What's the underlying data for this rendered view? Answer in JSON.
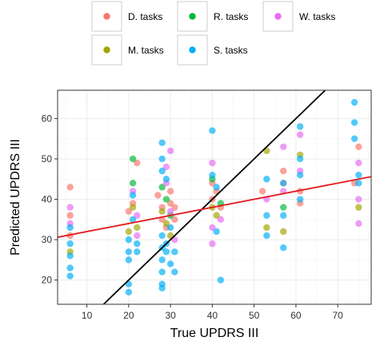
{
  "chart_data": {
    "type": "scatter",
    "xlabel": "True UPDRS III",
    "ylabel": "Predicted UPDRS III",
    "xlim": [
      3,
      78
    ],
    "ylim": [
      14,
      67
    ],
    "x_ticks": [
      10,
      20,
      30,
      40,
      50,
      60,
      70
    ],
    "y_ticks": [
      20,
      30,
      40,
      50,
      60
    ],
    "grid": true,
    "legend_position": "top",
    "series": [
      {
        "name": "D. tasks",
        "color": "#F8766D",
        "points": [
          [
            6,
            43
          ],
          [
            6,
            36
          ],
          [
            6,
            31
          ],
          [
            20,
            37
          ],
          [
            21,
            39
          ],
          [
            22,
            49
          ],
          [
            27,
            41
          ],
          [
            28,
            38
          ],
          [
            28,
            35
          ],
          [
            29,
            33
          ],
          [
            30,
            39
          ],
          [
            30,
            42
          ],
          [
            31,
            35
          ],
          [
            31,
            38
          ],
          [
            40,
            44
          ],
          [
            40,
            40
          ],
          [
            41,
            42
          ],
          [
            42,
            38
          ],
          [
            52,
            42
          ],
          [
            57,
            47
          ],
          [
            57,
            44
          ],
          [
            61,
            42
          ],
          [
            61,
            39
          ],
          [
            74,
            44
          ],
          [
            75,
            53
          ]
        ]
      },
      {
        "name": "R. tasks",
        "color": "#00BA38",
        "points": [
          [
            21,
            50
          ],
          [
            21,
            44
          ],
          [
            28,
            43
          ],
          [
            29,
            40
          ],
          [
            30,
            36
          ],
          [
            40,
            45
          ],
          [
            42,
            39
          ],
          [
            57,
            38
          ]
        ]
      },
      {
        "name": "W. tasks",
        "color": "#E76BF3",
        "points": [
          [
            6,
            38
          ],
          [
            6,
            34
          ],
          [
            21,
            42
          ],
          [
            22,
            36
          ],
          [
            22,
            31
          ],
          [
            29,
            48
          ],
          [
            29,
            44
          ],
          [
            30,
            52
          ],
          [
            30,
            37
          ],
          [
            31,
            30
          ],
          [
            40,
            49
          ],
          [
            40,
            33
          ],
          [
            40,
            29
          ],
          [
            42,
            35
          ],
          [
            53,
            40
          ],
          [
            57,
            53
          ],
          [
            57,
            42
          ],
          [
            61,
            56
          ],
          [
            61,
            47
          ],
          [
            75,
            49
          ],
          [
            75,
            40
          ],
          [
            75,
            34
          ]
        ]
      },
      {
        "name": "M. tasks",
        "color": "#A3A500",
        "points": [
          [
            6,
            27
          ],
          [
            20,
            32
          ],
          [
            21,
            38
          ],
          [
            22,
            33
          ],
          [
            28,
            37
          ],
          [
            29,
            34
          ],
          [
            30,
            31
          ],
          [
            40,
            38
          ],
          [
            41,
            36
          ],
          [
            53,
            52
          ],
          [
            53,
            33
          ],
          [
            57,
            32
          ],
          [
            61,
            51
          ],
          [
            75,
            38
          ]
        ]
      },
      {
        "name": "S. tasks",
        "color": "#00B0F6",
        "points": [
          [
            6,
            33
          ],
          [
            6,
            29
          ],
          [
            6,
            26
          ],
          [
            6,
            23
          ],
          [
            6,
            21
          ],
          [
            20,
            30
          ],
          [
            20,
            27
          ],
          [
            20,
            25
          ],
          [
            20,
            19
          ],
          [
            20,
            17
          ],
          [
            21,
            41
          ],
          [
            21,
            35
          ],
          [
            22,
            29
          ],
          [
            22,
            27
          ],
          [
            28,
            54
          ],
          [
            28,
            50
          ],
          [
            28,
            47
          ],
          [
            28,
            31
          ],
          [
            28,
            28
          ],
          [
            28,
            25
          ],
          [
            28,
            22
          ],
          [
            28,
            19
          ],
          [
            28,
            18
          ],
          [
            29,
            45
          ],
          [
            29,
            29
          ],
          [
            29,
            27
          ],
          [
            30,
            33
          ],
          [
            30,
            24
          ],
          [
            31,
            27
          ],
          [
            31,
            22
          ],
          [
            40,
            57
          ],
          [
            40,
            46
          ],
          [
            41,
            43
          ],
          [
            41,
            32
          ],
          [
            42,
            20
          ],
          [
            53,
            45
          ],
          [
            53,
            36
          ],
          [
            53,
            31
          ],
          [
            57,
            44
          ],
          [
            57,
            36
          ],
          [
            57,
            28
          ],
          [
            61,
            58
          ],
          [
            61,
            50
          ],
          [
            61,
            46
          ],
          [
            61,
            40
          ],
          [
            74,
            64
          ],
          [
            74,
            59
          ],
          [
            74,
            55
          ],
          [
            75,
            46
          ],
          [
            75,
            44
          ]
        ]
      }
    ],
    "lines": [
      {
        "name": "identity",
        "color": "#000000",
        "slope": 1,
        "intercept": 0
      },
      {
        "name": "fit",
        "color": "#E41A1C",
        "slope": 0.2,
        "intercept": 30
      }
    ]
  }
}
